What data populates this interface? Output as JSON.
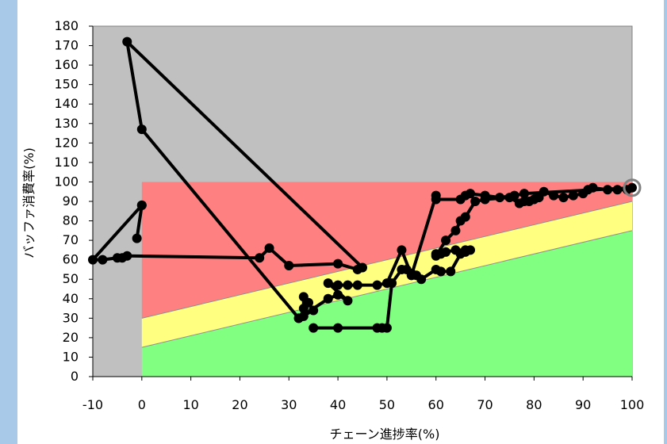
{
  "chart_data": {
    "type": "line",
    "title": "",
    "xlabel": "チェーン進捗率(%)",
    "ylabel": "バッファ消費率(%)",
    "xlim": [
      -10,
      100
    ],
    "ylim": [
      0,
      180
    ],
    "x_ticks": [
      "-10",
      "0",
      "10",
      "20",
      "30",
      "40",
      "50",
      "60",
      "70",
      "80",
      "90",
      "100"
    ],
    "y_ticks": [
      "0",
      "10",
      "20",
      "30",
      "40",
      "50",
      "60",
      "70",
      "80",
      "90",
      "100",
      "110",
      "120",
      "130",
      "140",
      "150",
      "160",
      "170",
      "180"
    ],
    "grid": false,
    "colors": {
      "plot_background": "#c0c0c0",
      "red_zone": "#ff8080",
      "yellow_zone": "#ffff80",
      "green_zone": "#80ff80",
      "series_line": "#000000",
      "frame_background": "#a9c9e8"
    },
    "zones": {
      "red_top": 100,
      "yellow_boundary_at_0": 30,
      "yellow_boundary_at_100": 90,
      "green_boundary_at_0": 15,
      "green_boundary_at_100": 75
    },
    "series": [
      {
        "x": [
          0,
          -1,
          0,
          -10,
          -8,
          -5,
          -4,
          -3,
          24,
          26,
          30,
          40,
          44,
          45,
          -3,
          0,
          32,
          33,
          33,
          33,
          34,
          35,
          32,
          38,
          40,
          42,
          38,
          40,
          42,
          44,
          48,
          50,
          53,
          55,
          56,
          57,
          60,
          61,
          63,
          65,
          66,
          67,
          66,
          64,
          62,
          61,
          60,
          60,
          62,
          64,
          65,
          66,
          68,
          70,
          75,
          77,
          78,
          79,
          80,
          81,
          82,
          84,
          86,
          88,
          90,
          91,
          92,
          95,
          97,
          99,
          100,
          78,
          76,
          73,
          70,
          67,
          66,
          65,
          60,
          60,
          55,
          55,
          54,
          53,
          51,
          50,
          49,
          48,
          40,
          35
        ],
        "y": [
          88,
          71,
          88,
          60,
          60,
          61,
          61,
          62,
          61,
          66,
          57,
          58,
          55,
          56,
          172,
          127,
          30,
          31,
          41,
          35,
          38,
          34,
          30,
          40,
          42,
          39,
          48,
          47,
          47,
          47,
          47,
          48,
          65,
          52,
          52,
          50,
          55,
          54,
          54,
          63,
          64,
          65,
          65,
          65,
          64,
          63,
          63,
          62,
          70,
          75,
          80,
          82,
          90,
          91,
          92,
          89,
          90,
          90,
          91,
          92,
          95,
          93,
          92,
          93,
          94,
          96,
          97,
          96,
          96,
          96,
          97,
          94,
          93,
          92,
          93,
          94,
          93,
          91,
          91,
          93,
          52,
          53,
          55,
          55,
          48,
          25,
          25,
          25,
          25,
          25
        ],
        "highlight_last_point": [
          100,
          97
        ]
      }
    ]
  }
}
